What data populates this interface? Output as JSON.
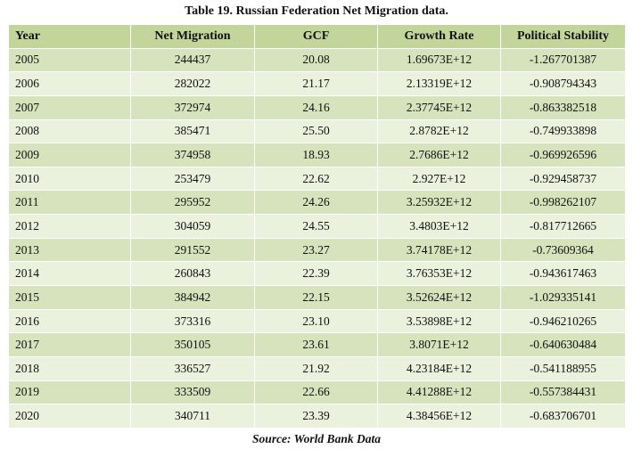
{
  "title": "Table 19. Russian Federation Net Migration data.",
  "headers": [
    "Year",
    "Net Migration",
    "GCF",
    "Growth Rate",
    "Political Stability"
  ],
  "rows": [
    [
      "2005",
      "244437",
      "20.08",
      "1.69673E+12",
      "-1.267701387"
    ],
    [
      "2006",
      "282022",
      "21.17",
      "2.13319E+12",
      "-0.908794343"
    ],
    [
      "2007",
      "372974",
      "24.16",
      "2.37745E+12",
      "-0.863382518"
    ],
    [
      "2008",
      "385471",
      "25.50",
      "2.8782E+12",
      "-0.749933898"
    ],
    [
      "2009",
      "374958",
      "18.93",
      "2.7686E+12",
      "-0.969926596"
    ],
    [
      "2010",
      "253479",
      "22.62",
      "2.927E+12",
      "-0.929458737"
    ],
    [
      "2011",
      "295952",
      "24.26",
      "3.25932E+12",
      "-0.998262107"
    ],
    [
      "2012",
      "304059",
      "24.55",
      "3.4803E+12",
      "-0.817712665"
    ],
    [
      "2013",
      "291552",
      "23.27",
      "3.74178E+12",
      "-0.73609364"
    ],
    [
      "2014",
      "260843",
      "22.39",
      "3.76353E+12",
      "-0.943617463"
    ],
    [
      "2015",
      "384942",
      "22.15",
      "3.52624E+12",
      "-1.029335141"
    ],
    [
      "2016",
      "373316",
      "23.10",
      "3.53898E+12",
      "-0.946210265"
    ],
    [
      "2017",
      "350105",
      "23.61",
      "3.8071E+12",
      "-0.640630484"
    ],
    [
      "2018",
      "336527",
      "21.92",
      "4.23184E+12",
      "-0.541188955"
    ],
    [
      "2019",
      "333509",
      "22.66",
      "4.41288E+12",
      "-0.557384431"
    ],
    [
      "2020",
      "340711",
      "23.39",
      "4.38456E+12",
      "-0.683706701"
    ]
  ],
  "source": "Source: World Bank Data",
  "colors": {
    "header": "#c2d69b",
    "row_dark": "#d6e3bc",
    "row_light": "#eaf1dd",
    "border": "#ffffff"
  }
}
